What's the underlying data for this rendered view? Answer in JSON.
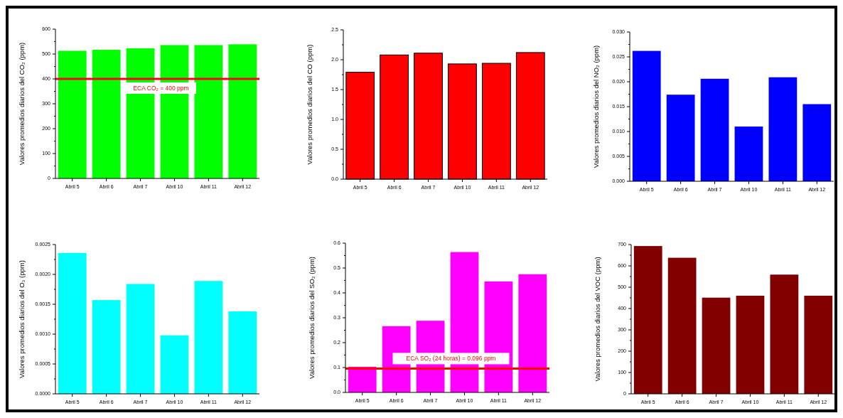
{
  "chart_data": [
    {
      "type": "bar",
      "ylabel": "Valores promedios diarios del CO₂ (ppm)",
      "categories": [
        "Abril 5",
        "Abril 6",
        "Abril 7",
        "Abril 10",
        "Abril 11",
        "Abril 12"
      ],
      "values": [
        513,
        517,
        523,
        536,
        536,
        539
      ],
      "color": "#00ff00",
      "ylim": [
        0,
        600
      ],
      "yticks": [
        0,
        100,
        200,
        300,
        400,
        500,
        600
      ],
      "ref_lines": [
        {
          "axis": "y",
          "value": 400,
          "label": "ECA CO₂ = 400 ppm",
          "color": "#ff0000"
        }
      ]
    },
    {
      "type": "bar",
      "ylabel": "Valores promedios diarios del CO (ppm)",
      "categories": [
        "Abril 5",
        "Abril 6",
        "Abril 7",
        "Abril 10",
        "Abril 11",
        "Abril 12"
      ],
      "values": [
        1.79,
        2.08,
        2.11,
        1.93,
        1.94,
        2.12
      ],
      "color": "#ff0000",
      "ylim": [
        0,
        2.5
      ],
      "yticks": [
        {
          "value": 0,
          "label": "0.0"
        },
        0.5,
        {
          "value": 1,
          "label": "1.0"
        },
        1.5,
        {
          "value": 2,
          "label": "2.0"
        },
        2.5
      ]
    },
    {
      "type": "bar",
      "ylabel": "Valores promedios diarios del NO₂ (ppm)",
      "categories": [
        "Abril 5",
        "Abril 6",
        "Abril 7",
        "Abril 10",
        "Abril 11",
        "Abril 12"
      ],
      "values": [
        0.0262,
        0.0174,
        0.0206,
        0.011,
        0.0209,
        0.0155
      ],
      "color": "#0000ff",
      "ylim": [
        0,
        0.03
      ],
      "yticks": [
        {
          "value": 0,
          "label": "0.000"
        },
        0.005,
        {
          "value": 0.01,
          "label": "0.010"
        },
        0.015,
        {
          "value": 0.02,
          "label": "0.020"
        },
        0.025,
        {
          "value": 0.03,
          "label": "0.030"
        }
      ]
    },
    {
      "type": "bar",
      "ylabel": "Valores promedios diarios del O₃ (ppm)",
      "categories": [
        "Abril 5",
        "Abril 6",
        "Abril 7",
        "Abril 10",
        "Abril 11",
        "Abril 12"
      ],
      "values": [
        0.00236,
        0.00157,
        0.00184,
        0.00098,
        0.00189,
        0.00138
      ],
      "color": "#00ffff",
      "ylim": [
        0,
        0.0025
      ],
      "yticks": [
        {
          "value": 0,
          "label": "0.0000"
        },
        {
          "value": 0.0005,
          "label": "0.0005"
        },
        {
          "value": 0.001,
          "label": "0.0010"
        },
        {
          "value": 0.0015,
          "label": "0.0015"
        },
        {
          "value": 0.002,
          "label": "0.0020"
        },
        {
          "value": 0.0025,
          "label": "0.0025"
        }
      ]
    },
    {
      "type": "bar",
      "ylabel": "Valores promedios diarios del SO₂ (ppm)",
      "categories": [
        "Abril 5",
        "Abril 6",
        "Abril 7",
        "Abril 10",
        "Abril 11",
        "Abril 12"
      ],
      "values": [
        0.103,
        0.266,
        0.288,
        0.564,
        0.446,
        0.475
      ],
      "color": "#ff00ff",
      "ylim": [
        0,
        0.6
      ],
      "yticks": [
        {
          "value": 0,
          "label": "0.0"
        },
        0.1,
        0.2,
        0.3,
        0.4,
        0.5,
        0.6
      ],
      "ref_lines": [
        {
          "axis": "y",
          "value": 0.096,
          "label": "ECA SO₂ (24 horas) = 0.096 ppm",
          "color": "#ff0000"
        }
      ]
    },
    {
      "type": "bar",
      "ylabel": "Valores promedios diarios del VOC (ppm)",
      "categories": [
        "Abril 5",
        "Abril 6",
        "Abril 7",
        "Abril 10",
        "Abril 11",
        "Abril 12"
      ],
      "values": [
        693,
        638,
        451,
        460,
        559,
        460
      ],
      "color": "#800000",
      "ylim": [
        0,
        700
      ],
      "yticks": [
        0,
        100,
        200,
        300,
        400,
        500,
        600,
        700
      ]
    }
  ]
}
